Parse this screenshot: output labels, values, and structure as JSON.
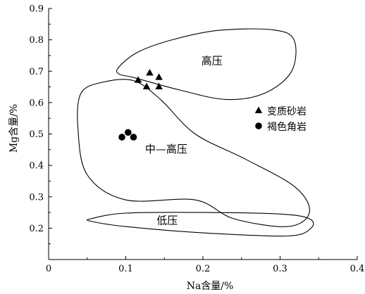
{
  "chart_data": {
    "type": "scatter",
    "xlabel": "Na含量/%",
    "ylabel": "Mg含量/%",
    "xlim": [
      0,
      0.4
    ],
    "ylim": [
      0.1,
      0.9
    ],
    "x_ticks": [
      "0",
      "0.1",
      "0.2",
      "0.3",
      "0.4"
    ],
    "y_ticks": [
      "0.2",
      "0.3",
      "0.4",
      "0.5",
      "0.6",
      "0.7",
      "0.8",
      "0.9"
    ],
    "grid": false,
    "legend_position": "right",
    "series": [
      {
        "name": "变质砂岩",
        "marker": "triangle",
        "color": "#000000",
        "points": [
          {
            "x": 0.116,
            "y": 0.672
          },
          {
            "x": 0.131,
            "y": 0.695
          },
          {
            "x": 0.143,
            "y": 0.681
          },
          {
            "x": 0.127,
            "y": 0.651
          },
          {
            "x": 0.143,
            "y": 0.651
          }
        ]
      },
      {
        "name": "褐色角岩",
        "marker": "circle",
        "color": "#000000",
        "points": [
          {
            "x": 0.103,
            "y": 0.505
          },
          {
            "x": 0.095,
            "y": 0.49
          },
          {
            "x": 0.11,
            "y": 0.49
          }
        ]
      }
    ],
    "regions": [
      {
        "label": "高压",
        "label_at": [
          0.198,
          0.722
        ],
        "outline": [
          [
            0.09,
            0.71
          ],
          [
            0.115,
            0.76
          ],
          [
            0.16,
            0.8
          ],
          [
            0.22,
            0.83
          ],
          [
            0.29,
            0.832
          ],
          [
            0.318,
            0.8
          ],
          [
            0.315,
            0.7
          ],
          [
            0.28,
            0.63
          ],
          [
            0.23,
            0.61
          ],
          [
            0.17,
            0.64
          ],
          [
            0.11,
            0.68
          ],
          [
            0.092,
            0.69
          ]
        ]
      },
      {
        "label": "中—高压",
        "label_at": [
          0.125,
          0.441
        ],
        "outline": [
          [
            0.042,
            0.63
          ],
          [
            0.07,
            0.665
          ],
          [
            0.11,
            0.67
          ],
          [
            0.145,
            0.61
          ],
          [
            0.19,
            0.5
          ],
          [
            0.255,
            0.42
          ],
          [
            0.32,
            0.33
          ],
          [
            0.338,
            0.25
          ],
          [
            0.31,
            0.205
          ],
          [
            0.24,
            0.23
          ],
          [
            0.19,
            0.29
          ],
          [
            0.1,
            0.29
          ],
          [
            0.05,
            0.37
          ],
          [
            0.038,
            0.52
          ]
        ]
      },
      {
        "label": "低压",
        "label_at": [
          0.14,
          0.213
        ],
        "outline": [
          [
            0.055,
            0.23
          ],
          [
            0.1,
            0.248
          ],
          [
            0.2,
            0.25
          ],
          [
            0.3,
            0.245
          ],
          [
            0.338,
            0.23
          ],
          [
            0.34,
            0.2
          ],
          [
            0.31,
            0.175
          ],
          [
            0.2,
            0.185
          ],
          [
            0.1,
            0.205
          ],
          [
            0.055,
            0.222
          ]
        ]
      }
    ]
  }
}
